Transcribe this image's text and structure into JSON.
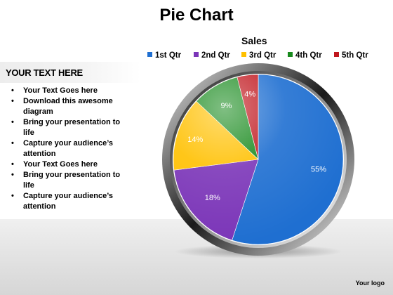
{
  "slide": {
    "title": "Pie Chart",
    "left_header": "YOUR TEXT HERE",
    "bullets": [
      "Your Text Goes here",
      "Download this awesome diagram",
      "Bring your presentation to life",
      "Capture your audience’s attention",
      "Your Text Goes here",
      "Bring your presentation to life",
      "Capture your audience’s attention"
    ],
    "logo": "Your logo"
  },
  "chart_data": {
    "type": "pie",
    "title": "Sales",
    "legend_position": "top",
    "categories": [
      "1st Qtr",
      "2nd Qtr",
      "3rd Qtr",
      "4th Qtr",
      "5th Qtr"
    ],
    "values": [
      55,
      18,
      14,
      9,
      4
    ],
    "data_labels": [
      "55%",
      "18%",
      "14%",
      "9%",
      "4%"
    ],
    "colors": [
      "#1f6fd1",
      "#7b35b8",
      "#ffc000",
      "#188a1d",
      "#c0161d"
    ]
  }
}
